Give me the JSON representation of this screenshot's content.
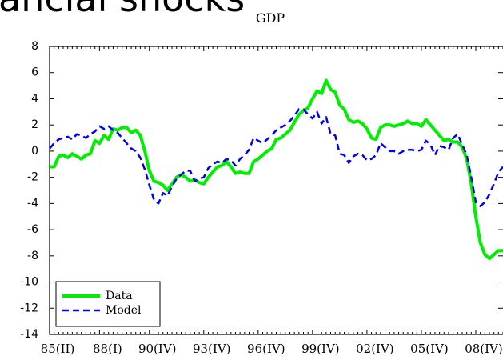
{
  "chart_data": {
    "type": "line",
    "title": "ancial shocks",
    "subtitle": "GDP",
    "categories": [
      "85(II)",
      null,
      null,
      null,
      null,
      null,
      null,
      null,
      null,
      null,
      null,
      "88(I)",
      null,
      null,
      null,
      null,
      null,
      null,
      null,
      null,
      null,
      null,
      "90(IV)",
      null,
      null,
      null,
      null,
      null,
      null,
      null,
      null,
      null,
      null,
      null,
      "93(IV)",
      null,
      null,
      null,
      null,
      null,
      null,
      null,
      null,
      null,
      null,
      null,
      "96(IV)",
      null,
      null,
      null,
      null,
      null,
      null,
      null,
      null,
      null,
      null,
      null,
      "99(IV)",
      null,
      null,
      null,
      null,
      null,
      null,
      null,
      null,
      null,
      null,
      null,
      "02(IV)",
      null,
      null,
      null,
      null,
      null,
      null,
      null,
      null,
      null,
      null,
      null,
      "05(IV)",
      null,
      null,
      null,
      null,
      null,
      null,
      null,
      null,
      null,
      null,
      null,
      "08(IV)",
      null,
      null,
      null,
      null,
      null,
      null
    ],
    "series": [
      {
        "name": "Data",
        "color": "#00ee00",
        "dash": false,
        "values": [
          -1.2,
          -1.2,
          -0.4,
          -0.3,
          -0.5,
          -0.2,
          -0.4,
          -0.6,
          -0.3,
          -0.2,
          0.8,
          0.6,
          1.2,
          0.9,
          1.7,
          1.6,
          1.8,
          1.8,
          1.4,
          1.6,
          1.2,
          0.0,
          -1.5,
          -2.3,
          -2.4,
          -2.6,
          -3.0,
          -2.5,
          -2.0,
          -1.8,
          -2.0,
          -2.3,
          -2.2,
          -2.4,
          -2.5,
          -2.0,
          -1.6,
          -1.2,
          -1.1,
          -0.8,
          -1.2,
          -1.7,
          -1.6,
          -1.7,
          -1.7,
          -0.8,
          -0.6,
          -0.3,
          0.0,
          0.2,
          0.9,
          1.0,
          1.3,
          1.6,
          2.2,
          2.8,
          3.1,
          3.3,
          4.0,
          4.6,
          4.4,
          5.4,
          4.7,
          4.5,
          3.5,
          3.2,
          2.4,
          2.2,
          2.3,
          2.1,
          1.7,
          1.0,
          0.9,
          1.8,
          2.0,
          2.0,
          1.9,
          2.0,
          2.1,
          2.3,
          2.1,
          2.1,
          1.9,
          2.4,
          2.0,
          1.6,
          1.2,
          0.8,
          0.9,
          0.7,
          0.7,
          0.3,
          -0.6,
          -2.5,
          -5.0,
          -7.0,
          -7.9,
          -8.2,
          -7.9,
          -7.6,
          -7.6
        ]
      },
      {
        "name": "Model",
        "color": "#0000ee",
        "dash": true,
        "values": [
          0.2,
          0.6,
          0.9,
          1.0,
          1.1,
          0.9,
          1.3,
          1.2,
          1.0,
          1.3,
          1.5,
          1.9,
          1.7,
          1.9,
          1.6,
          1.4,
          1.0,
          0.6,
          0.2,
          0.0,
          -0.5,
          -1.4,
          -2.6,
          -3.7,
          -4.0,
          -3.2,
          -3.4,
          -2.7,
          -2.1,
          -1.8,
          -1.5,
          -1.5,
          -2.3,
          -2.1,
          -2.0,
          -1.3,
          -1.0,
          -0.8,
          -0.9,
          -0.6,
          -0.7,
          -1.1,
          -0.6,
          -0.3,
          0.1,
          1.0,
          0.8,
          0.6,
          0.9,
          1.2,
          1.6,
          1.8,
          2.0,
          2.3,
          2.7,
          3.2,
          3.2,
          2.8,
          2.5,
          3.0,
          2.1,
          2.6,
          1.3,
          1.2,
          -0.2,
          -0.3,
          -0.9,
          -0.4,
          -0.2,
          -0.3,
          -0.7,
          -0.6,
          -0.3,
          0.6,
          0.3,
          0.0,
          0.0,
          -0.2,
          0.0,
          0.1,
          0.1,
          0.0,
          0.1,
          0.8,
          0.5,
          -0.3,
          0.4,
          0.3,
          0.1,
          1.0,
          1.3,
          0.5,
          -0.3,
          -2.0,
          -3.9,
          -4.2,
          -3.9,
          -3.3,
          -2.5,
          -1.6,
          -1.2
        ]
      }
    ],
    "ylim": [
      -14,
      8
    ],
    "yticks": [
      -14,
      -12,
      -10,
      -8,
      -6,
      -4,
      -2,
      0,
      2,
      4,
      6,
      8
    ],
    "legend": "lower left",
    "grid": false
  }
}
